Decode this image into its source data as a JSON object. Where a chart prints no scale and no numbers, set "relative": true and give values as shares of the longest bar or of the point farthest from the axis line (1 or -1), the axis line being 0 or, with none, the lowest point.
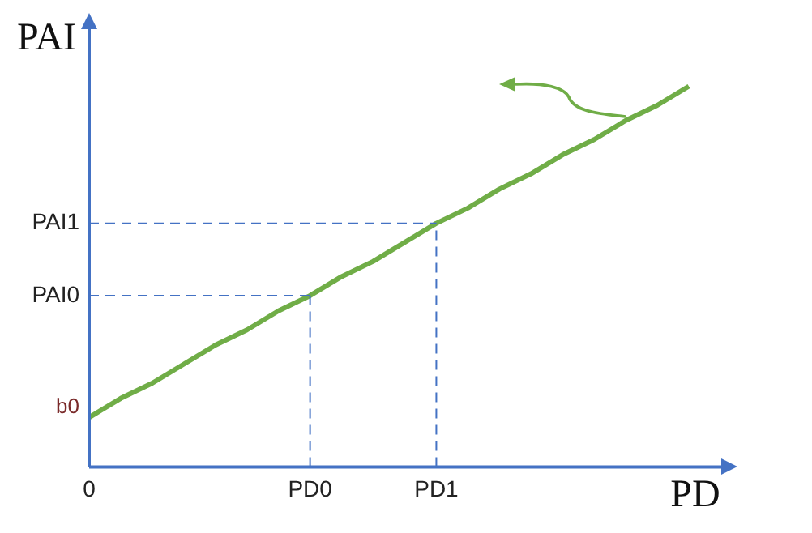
{
  "chart_data": {
    "type": "line",
    "relative": true,
    "xlabel": "PD",
    "ylabel": "PAI",
    "categories": [
      "0",
      null,
      null,
      null,
      null,
      null,
      null,
      "PD0",
      null,
      null,
      null,
      "PD1",
      null,
      null,
      null,
      null,
      null,
      null,
      null,
      null
    ],
    "series": [
      {
        "color": "#70ad47",
        "values": [
          0.13,
          0.18,
          0.22,
          0.27,
          0.32,
          0.36,
          0.41,
          0.45,
          0.5,
          0.54,
          0.59,
          0.64,
          0.68,
          0.73,
          0.77,
          0.82,
          0.86,
          0.91,
          0.95,
          1
        ]
      }
    ],
    "ref_lines": [
      {
        "axis": "x",
        "value": "PD0",
        "color": "#4472c4",
        "line_style": "dashed"
      },
      {
        "axis": "x",
        "value": "PD1",
        "color": "#4472c4",
        "line_style": "dashed"
      },
      {
        "axis": "y",
        "value": 0.45,
        "label": "PAI0",
        "color": "#4472c4",
        "line_style": "dashed"
      },
      {
        "axis": "y",
        "value": 0.64,
        "label": "PAI1",
        "color": "#4472c4",
        "line_style": "dashed"
      }
    ],
    "annotations": [
      {
        "text": "b0",
        "x": "0",
        "y": 0.13
      }
    ],
    "grid": false,
    "legend": false,
    "marker": "none",
    "line_style": "solid"
  }
}
